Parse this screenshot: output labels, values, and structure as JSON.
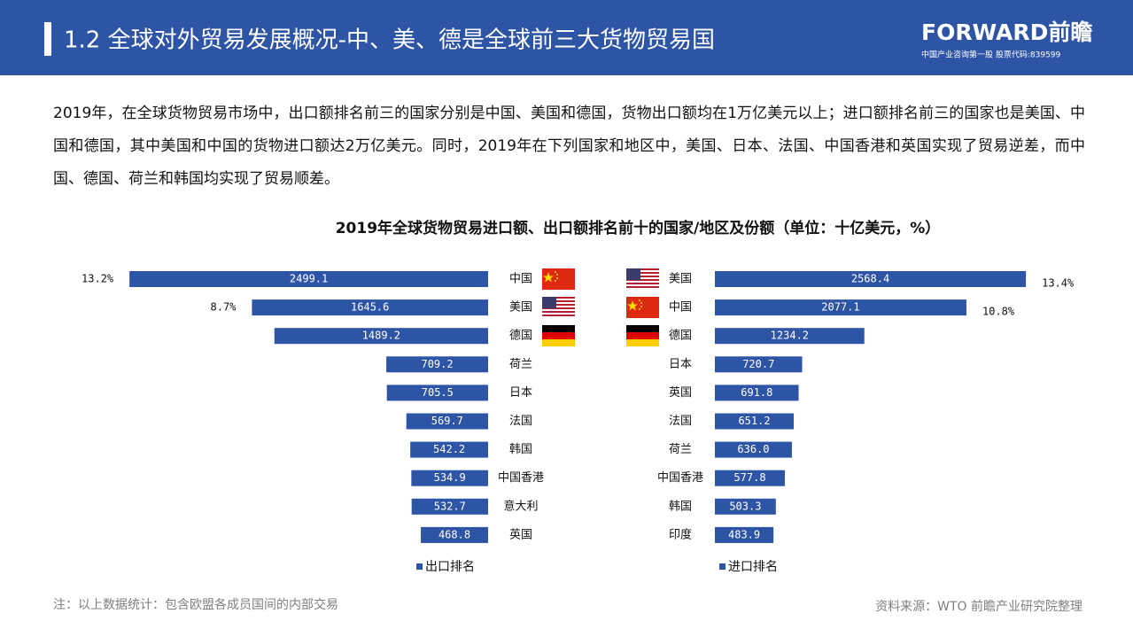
{
  "header": {
    "title": "1.2 全球对外贸易发展概况-中、美、德是全球前三大货物贸易国",
    "logo": "FORWARD前瞻",
    "logo_subtitle": "中国产业咨询第一股 股票代码:839599"
  },
  "intro": "2019年，在全球货物贸易市场中，出口额排名前三的国家分别是中国、美国和德国，货物出口额均在1万亿美元以上；进口额排名前三的国家也是美国、中国和德国，其中美国和中国的货物进口额达2万亿美元。同时，2019年在下列国家和地区中，美国、日本、法国、中国香港和英国实现了贸易逆差，而中国、德国、荷兰和韩国均实现了贸易顺差。",
  "chart_title": "2019年全球货物贸易进口额、出口额排名前十的国家/地区及份额（单位：十亿美元，%）",
  "chart_data": [
    {
      "type": "bar",
      "categories": [
        "中国",
        "美国",
        "德国",
        "荷兰",
        "日本",
        "法国",
        "韩国",
        "中国香港",
        "意大利",
        "英国"
      ],
      "series": [
        {
          "name": "出口排名",
          "color": "#2e54a6",
          "values": [
            2499.1,
            1645.6,
            1489.2,
            709.2,
            705.5,
            569.7,
            542.2,
            534.9,
            532.7,
            468.8
          ],
          "shares": [
            13.2,
            8.7,
            null,
            null,
            null,
            null,
            null,
            null,
            null,
            null
          ],
          "share_labels": [
            "13.2%",
            "8.7%",
            null,
            null,
            null,
            null,
            null,
            null,
            null,
            null
          ]
        }
      ]
    },
    {
      "type": "bar",
      "categories": [
        "美国",
        "中国",
        "德国",
        "日本",
        "英国",
        "法国",
        "荷兰",
        "中国香港",
        "韩国",
        "印度"
      ],
      "series": [
        {
          "name": "进口排名",
          "color": "#2e54a6",
          "values": [
            2568.4,
            2077.1,
            1234.2,
            720.7,
            691.8,
            651.2,
            636,
            577.8,
            503.3,
            483.9
          ],
          "value_labels": [
            "2568.4",
            "2077.1",
            "1234.2",
            "720.7",
            "691.8",
            "651.2",
            "636.0",
            "577.8",
            "503.3",
            "483.9"
          ],
          "shares": [
            13.4,
            10.8,
            null,
            null,
            null,
            null,
            null,
            null,
            null,
            null
          ],
          "share_labels": [
            "13.4%",
            "10.8%",
            null,
            null,
            null,
            null,
            null,
            null,
            null,
            null
          ]
        }
      ]
    }
  ],
  "note": "注：以上数据统计：包含欧盟各成员国间的内部交易",
  "source": "资料来源：WTO 前瞻产业研究院整理"
}
